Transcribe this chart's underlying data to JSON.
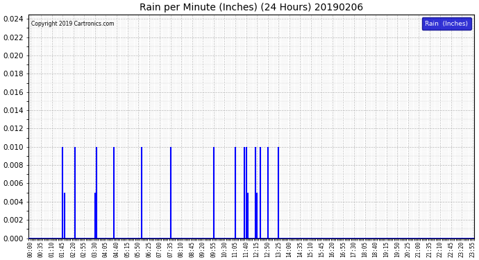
{
  "title": "Rain per Minute (Inches) (24 Hours) 20190206",
  "copyright": "Copyright 2019 Cartronics.com",
  "legend_label": "Rain  (Inches)",
  "ylim": [
    0.0,
    0.0245
  ],
  "yticks": [
    0.0,
    0.002,
    0.004,
    0.006,
    0.008,
    0.01,
    0.012,
    0.014,
    0.016,
    0.018,
    0.02,
    0.022,
    0.024
  ],
  "line_color": "#0000ff",
  "background_color": "#ffffff",
  "grid_color": "#bbbbbb",
  "legend_bg": "#0000cc",
  "legend_fg": "#ffffff",
  "rain_events": [
    {
      "time": "01:45",
      "value": 0.01
    },
    {
      "time": "01:50",
      "value": 0.005
    },
    {
      "time": "02:25",
      "value": 0.01
    },
    {
      "time": "03:30",
      "value": 0.005
    },
    {
      "time": "03:35",
      "value": 0.01
    },
    {
      "time": "04:30",
      "value": 0.01
    },
    {
      "time": "06:00",
      "value": 0.01
    },
    {
      "time": "07:35",
      "value": 0.01
    },
    {
      "time": "09:55",
      "value": 0.01
    },
    {
      "time": "11:05",
      "value": 0.01
    },
    {
      "time": "11:35",
      "value": 0.01
    },
    {
      "time": "11:40",
      "value": 0.01
    },
    {
      "time": "11:45",
      "value": 0.005
    },
    {
      "time": "12:10",
      "value": 0.01
    },
    {
      "time": "12:15",
      "value": 0.005
    },
    {
      "time": "12:25",
      "value": 0.01
    },
    {
      "time": "12:50",
      "value": 0.01
    },
    {
      "time": "13:25",
      "value": 0.01
    }
  ],
  "tick_interval_min": 35,
  "total_minutes": 1440,
  "figsize": [
    6.9,
    3.75
  ],
  "dpi": 100
}
